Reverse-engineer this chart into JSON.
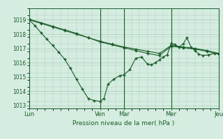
{
  "xlabel": "Pression niveau de la mer( hPa )",
  "background_color": "#d4ede0",
  "grid_color": "#aaccbb",
  "line_color": "#1a5c28",
  "ylim": [
    1012.8,
    1019.4
  ],
  "yticks": [
    1013,
    1014,
    1015,
    1016,
    1017,
    1018,
    1019
  ],
  "xlim": [
    0,
    48
  ],
  "day_labels": [
    "Lun",
    "Ven",
    "Mar",
    "Mer",
    "Jeu"
  ],
  "day_positions": [
    0,
    18,
    24,
    36,
    48
  ],
  "series1_x": [
    0,
    3,
    6,
    9,
    12,
    15,
    18,
    21,
    24,
    27,
    30,
    33,
    36,
    39,
    42,
    45,
    48
  ],
  "series1_y": [
    1019.0,
    1018.75,
    1018.5,
    1018.25,
    1018.0,
    1017.75,
    1017.5,
    1017.3,
    1017.1,
    1016.95,
    1016.8,
    1016.65,
    1017.2,
    1017.1,
    1017.0,
    1016.85,
    1016.65
  ],
  "series2_x": [
    0,
    1.5,
    3,
    4.5,
    6,
    7.5,
    9,
    10.5,
    12,
    13.5,
    15,
    16.5,
    18,
    19,
    20,
    21.5,
    23,
    24,
    25.5,
    27,
    28.5,
    30,
    31,
    32,
    33,
    34,
    35,
    36,
    37,
    38,
    39,
    40,
    41,
    42,
    43,
    44,
    45.5,
    47,
    48
  ],
  "series2_y": [
    1019.0,
    1018.6,
    1018.1,
    1017.65,
    1017.2,
    1016.75,
    1016.25,
    1015.6,
    1014.85,
    1014.15,
    1013.5,
    1013.35,
    1013.3,
    1013.5,
    1014.5,
    1014.85,
    1015.1,
    1015.15,
    1015.5,
    1016.3,
    1016.4,
    1015.9,
    1015.85,
    1016.0,
    1016.2,
    1016.4,
    1016.55,
    1017.35,
    1017.25,
    1017.1,
    1017.3,
    1017.75,
    1017.1,
    1016.85,
    1016.6,
    1016.5,
    1016.55,
    1016.65,
    1016.65
  ],
  "series3_x": [
    0,
    3,
    6,
    9,
    12,
    15,
    18,
    21,
    24,
    27,
    30,
    33,
    36,
    39,
    42,
    45,
    48
  ],
  "series3_y": [
    1019.05,
    1018.8,
    1018.55,
    1018.3,
    1018.05,
    1017.75,
    1017.45,
    1017.25,
    1017.05,
    1016.85,
    1016.65,
    1016.5,
    1017.15,
    1017.05,
    1016.95,
    1016.8,
    1016.6
  ]
}
